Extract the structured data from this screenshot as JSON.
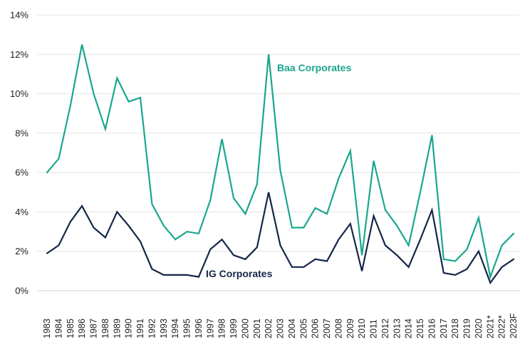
{
  "chart_data": {
    "type": "line",
    "title": "",
    "xlabel": "",
    "ylabel": "",
    "ylim": [
      0,
      14
    ],
    "yticks": [
      "0%",
      "2%",
      "4%",
      "6%",
      "8%",
      "10%",
      "12%",
      "14%"
    ],
    "ytick_values": [
      0,
      2,
      4,
      6,
      8,
      10,
      12,
      14
    ],
    "categories": [
      "1983",
      "1984",
      "1985",
      "1986",
      "1987",
      "1988",
      "1989",
      "1990",
      "1991",
      "1992",
      "1993",
      "1994",
      "1995",
      "1996",
      "1997",
      "1998",
      "1999",
      "2000",
      "2001",
      "2002",
      "2003",
      "2004",
      "2005",
      "2006",
      "2007",
      "2008",
      "2009",
      "2010",
      "2011",
      "2012",
      "2013",
      "2014",
      "2015",
      "2016",
      "2017",
      "2018",
      "2019",
      "2020",
      "2021*",
      "2022*",
      "2023F"
    ],
    "grid": "horizontal",
    "series": [
      {
        "name": "Baa Corporates",
        "color": "#1aa68e",
        "values": [
          6.0,
          6.7,
          9.4,
          12.5,
          10.0,
          8.2,
          10.8,
          9.6,
          9.8,
          4.4,
          3.3,
          2.6,
          3.0,
          2.9,
          4.6,
          7.7,
          4.7,
          3.9,
          5.4,
          12.0,
          6.1,
          3.2,
          3.2,
          4.2,
          3.9,
          5.7,
          7.1,
          1.8,
          6.6,
          4.1,
          3.3,
          2.3,
          5.0,
          7.9,
          1.6,
          1.5,
          2.1,
          3.7,
          0.7,
          2.3,
          2.9
        ]
      },
      {
        "name": "IG Corporates",
        "color": "#142649",
        "values": [
          1.9,
          2.3,
          3.5,
          4.3,
          3.2,
          2.7,
          4.0,
          3.3,
          2.5,
          1.1,
          0.8,
          0.8,
          0.8,
          0.7,
          2.1,
          2.6,
          1.8,
          1.6,
          2.2,
          5.0,
          2.3,
          1.2,
          1.2,
          1.6,
          1.5,
          2.6,
          3.4,
          1.0,
          3.8,
          2.3,
          1.8,
          1.2,
          2.6,
          4.1,
          0.9,
          0.8,
          1.1,
          2.0,
          0.4,
          1.2,
          1.6
        ]
      }
    ],
    "annotations": [
      {
        "text": "Baa Corporates",
        "series": 0
      },
      {
        "text": "IG Corporates",
        "series": 1
      }
    ]
  }
}
